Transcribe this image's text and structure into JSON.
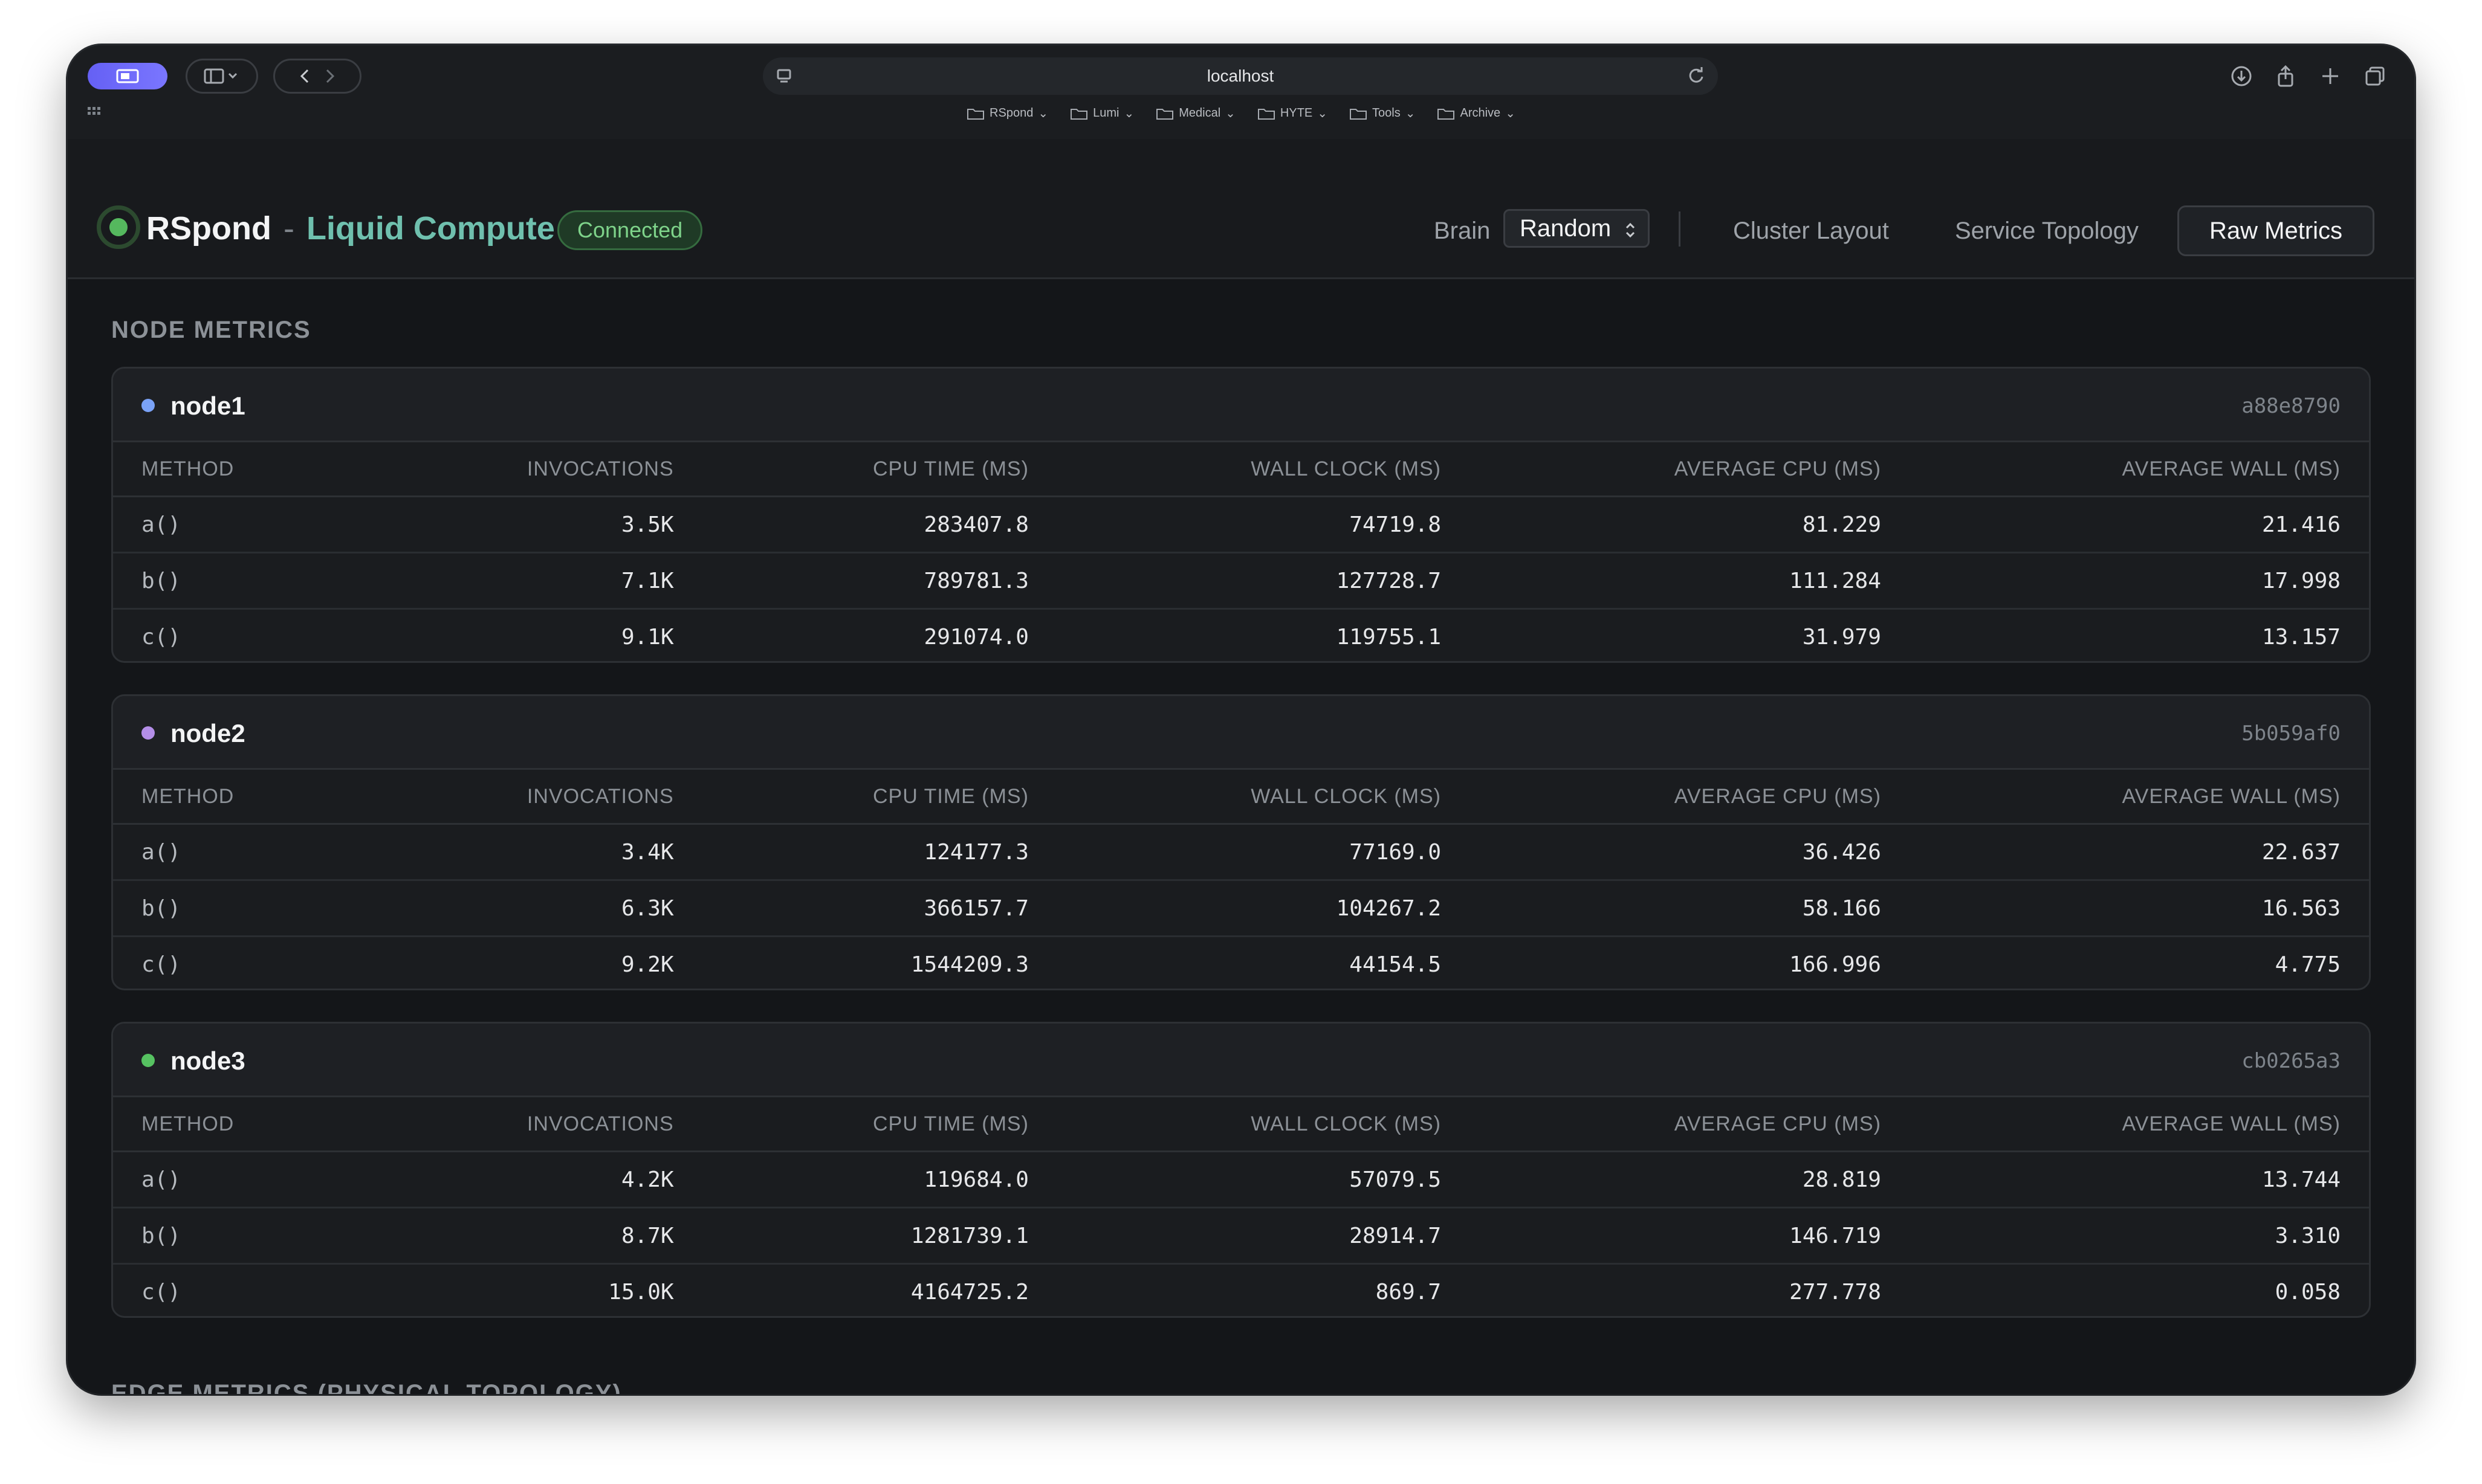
{
  "browser": {
    "url": "localhost",
    "bookmarks": [
      "RSpond",
      "Lumi",
      "Medical",
      "HYTE",
      "Tools",
      "Archive"
    ]
  },
  "header": {
    "brand": "RSpond",
    "separator": "-",
    "subtitle": "Liquid Compute",
    "status": "Connected",
    "brain_label": "Brain",
    "brain_value": "Random",
    "nav": [
      "Cluster Layout",
      "Service Topology",
      "Raw Metrics"
    ],
    "active_nav": "Raw Metrics"
  },
  "sections": {
    "node_metrics_title": "NODE METRICS",
    "edge_metrics_title": "EDGE METRICS (PHYSICAL TOPOLOGY)"
  },
  "columns": [
    "METHOD",
    "INVOCATIONS",
    "CPU TIME (MS)",
    "WALL CLOCK (MS)",
    "AVERAGE CPU (MS)",
    "AVERAGE WALL (MS)"
  ],
  "nodes": [
    {
      "name": "node1",
      "hash": "a88e8790",
      "color": "#7aa2f7",
      "rows": [
        [
          "a()",
          "3.5K",
          "283407.8",
          "74719.8",
          "81.229",
          "21.416"
        ],
        [
          "b()",
          "7.1K",
          "789781.3",
          "127728.7",
          "111.284",
          "17.998"
        ],
        [
          "c()",
          "9.1K",
          "291074.0",
          "119755.1",
          "31.979",
          "13.157"
        ]
      ]
    },
    {
      "name": "node2",
      "hash": "5b059af0",
      "color": "#b48ee8",
      "rows": [
        [
          "a()",
          "3.4K",
          "124177.3",
          "77169.0",
          "36.426",
          "22.637"
        ],
        [
          "b()",
          "6.3K",
          "366157.7",
          "104267.2",
          "58.166",
          "16.563"
        ],
        [
          "c()",
          "9.2K",
          "1544209.3",
          "44154.5",
          "166.996",
          "4.775"
        ]
      ]
    },
    {
      "name": "node3",
      "hash": "cb0265a3",
      "color": "#56c261",
      "rows": [
        [
          "a()",
          "4.2K",
          "119684.0",
          "57079.5",
          "28.819",
          "13.744"
        ],
        [
          "b()",
          "8.7K",
          "1281739.1",
          "28914.7",
          "146.719",
          "3.310"
        ],
        [
          "c()",
          "15.0K",
          "4164725.2",
          "869.7",
          "277.778",
          "0.058"
        ]
      ]
    }
  ]
}
